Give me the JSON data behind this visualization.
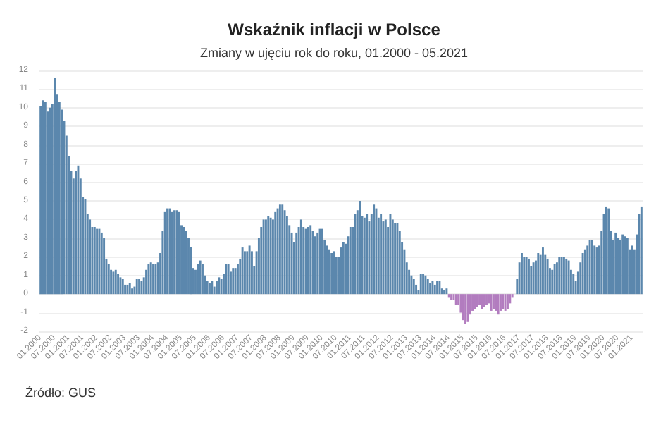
{
  "chart_data": {
    "type": "bar",
    "title": "Wskaźnik inflacji w Polsce",
    "subtitle": "Zmiany w ujęciu rok do roku, 01.2000 - 05.2021",
    "annotations": [
      "Źródło: GUS"
    ],
    "categories": [
      "01.2000",
      null,
      null,
      null,
      null,
      null,
      "07.2000",
      null,
      null,
      null,
      null,
      null,
      "01.2001",
      null,
      null,
      null,
      null,
      null,
      "07.2001",
      null,
      null,
      null,
      null,
      null,
      "01.2002",
      null,
      null,
      null,
      null,
      null,
      "07.2002",
      null,
      null,
      null,
      null,
      null,
      "01.2003",
      null,
      null,
      null,
      null,
      null,
      "07.2003",
      null,
      null,
      null,
      null,
      null,
      "01.2004",
      null,
      null,
      null,
      null,
      null,
      "07.2004",
      null,
      null,
      null,
      null,
      null,
      "01.2005",
      null,
      null,
      null,
      null,
      null,
      "07.2005",
      null,
      null,
      null,
      null,
      null,
      "01.2006",
      null,
      null,
      null,
      null,
      null,
      "07.2006",
      null,
      null,
      null,
      null,
      null,
      "01.2007",
      null,
      null,
      null,
      null,
      null,
      "07.2007",
      null,
      null,
      null,
      null,
      null,
      "01.2008",
      null,
      null,
      null,
      null,
      null,
      "07.2008",
      null,
      null,
      null,
      null,
      null,
      "01.2009",
      null,
      null,
      null,
      null,
      null,
      "07.2009",
      null,
      null,
      null,
      null,
      null,
      "01.2010",
      null,
      null,
      null,
      null,
      null,
      "07.2010",
      null,
      null,
      null,
      null,
      null,
      "01.2011",
      null,
      null,
      null,
      null,
      null,
      "07.2011",
      null,
      null,
      null,
      null,
      null,
      "01.2012",
      null,
      null,
      null,
      null,
      null,
      "07.2012",
      null,
      null,
      null,
      null,
      null,
      "01.2013",
      null,
      null,
      null,
      null,
      null,
      "07.2013",
      null,
      null,
      null,
      null,
      null,
      "01.2014",
      null,
      null,
      null,
      null,
      null,
      "07.2014",
      null,
      null,
      null,
      null,
      null,
      "01.2015",
      null,
      null,
      null,
      null,
      null,
      "07.2015",
      null,
      null,
      null,
      null,
      null,
      "01.2016",
      null,
      null,
      null,
      null,
      null,
      "07.2016",
      null,
      null,
      null,
      null,
      null,
      "01.2017",
      null,
      null,
      null,
      null,
      null,
      "07.2017",
      null,
      null,
      null,
      null,
      null,
      "01.2018",
      null,
      null,
      null,
      null,
      null,
      "07.2018",
      null,
      null,
      null,
      null,
      null,
      "01.2019",
      null,
      null,
      null,
      null,
      null,
      "07.2019",
      null,
      null,
      null,
      null,
      null,
      "01.2020",
      null,
      null,
      null,
      null,
      null,
      "07.2020",
      null,
      null,
      null,
      null,
      null,
      "01.2021",
      null,
      null,
      null,
      null
    ],
    "values": [
      10.1,
      10.4,
      10.3,
      9.8,
      10.0,
      10.2,
      11.6,
      10.7,
      10.3,
      9.9,
      9.3,
      8.5,
      7.4,
      6.6,
      6.2,
      6.6,
      6.9,
      6.2,
      5.2,
      5.1,
      4.3,
      4.0,
      3.6,
      3.6,
      3.5,
      3.5,
      3.3,
      3.0,
      1.9,
      1.6,
      1.3,
      1.2,
      1.3,
      1.1,
      0.9,
      0.8,
      0.5,
      0.5,
      0.6,
      0.3,
      0.4,
      0.8,
      0.8,
      0.7,
      0.9,
      1.3,
      1.6,
      1.7,
      1.6,
      1.6,
      1.7,
      2.2,
      3.4,
      4.4,
      4.6,
      4.6,
      4.4,
      4.5,
      4.5,
      4.4,
      3.7,
      3.6,
      3.4,
      3.0,
      2.5,
      1.4,
      1.3,
      1.6,
      1.8,
      1.6,
      1.0,
      0.7,
      0.6,
      0.7,
      0.4,
      0.7,
      0.9,
      0.8,
      1.1,
      1.6,
      1.6,
      1.2,
      1.4,
      1.4,
      1.6,
      1.9,
      2.5,
      2.3,
      2.3,
      2.6,
      2.3,
      1.5,
      2.3,
      3.0,
      3.6,
      4.0,
      4.0,
      4.2,
      4.1,
      4.0,
      4.4,
      4.6,
      4.8,
      4.8,
      4.5,
      4.2,
      3.7,
      3.3,
      2.8,
      3.3,
      3.6,
      4.0,
      3.6,
      3.5,
      3.6,
      3.7,
      3.4,
      3.1,
      3.3,
      3.5,
      3.5,
      2.9,
      2.6,
      2.4,
      2.2,
      2.3,
      2.0,
      2.0,
      2.5,
      2.8,
      2.7,
      3.1,
      3.6,
      3.6,
      4.3,
      4.5,
      5.0,
      4.2,
      4.1,
      4.3,
      3.9,
      4.3,
      4.8,
      4.6,
      4.1,
      4.3,
      3.9,
      4.0,
      3.6,
      4.3,
      4.0,
      3.8,
      3.8,
      3.4,
      2.8,
      2.4,
      1.7,
      1.3,
      1.0,
      0.8,
      0.5,
      0.2,
      1.1,
      1.1,
      1.0,
      0.8,
      0.6,
      0.7,
      0.5,
      0.7,
      0.7,
      0.3,
      0.2,
      0.3,
      -0.2,
      -0.3,
      -0.3,
      -0.6,
      -0.6,
      -1.0,
      -1.4,
      -1.6,
      -1.5,
      -1.1,
      -0.9,
      -0.8,
      -0.7,
      -0.6,
      -0.8,
      -0.7,
      -0.6,
      -0.5,
      -0.9,
      -0.8,
      -0.9,
      -1.1,
      -0.9,
      -0.8,
      -0.9,
      -0.8,
      -0.5,
      -0.2,
      0.0,
      0.8,
      1.7,
      2.2,
      2.0,
      2.0,
      1.9,
      1.5,
      1.7,
      1.8,
      2.2,
      2.1,
      2.5,
      2.1,
      1.9,
      1.4,
      1.3,
      1.6,
      1.7,
      2.0,
      2.0,
      2.0,
      1.9,
      1.8,
      1.3,
      1.1,
      0.7,
      1.2,
      1.7,
      2.2,
      2.4,
      2.6,
      2.9,
      2.9,
      2.6,
      2.5,
      2.6,
      3.4,
      4.3,
      4.7,
      4.6,
      3.4,
      2.9,
      3.3,
      3.0,
      2.9,
      3.2,
      3.1,
      3.0,
      2.4,
      2.6,
      2.4,
      3.2,
      4.3,
      4.7
    ],
    "colors": [
      "#5b87ad",
      "#5b87ad",
      "#5b87ad",
      "#5b87ad",
      "#5b87ad",
      "#5b87ad",
      "#5b87ad",
      "#5b87ad",
      "#5b87ad",
      "#5b87ad",
      "#5b87ad",
      "#5b87ad",
      "#5b87ad",
      "#5b87ad",
      "#5b87ad",
      "#5b87ad",
      "#5b87ad",
      "#5b87ad",
      "#5b87ad",
      "#5b87ad",
      "#5b87ad",
      "#5b87ad",
      "#5b87ad",
      "#5b87ad",
      "#5b87ad",
      "#5b87ad",
      "#5b87ad",
      "#5b87ad",
      "#5b87ad",
      "#5b87ad",
      "#5b87ad",
      "#5b87ad",
      "#5b87ad",
      "#5b87ad",
      "#5b87ad",
      "#5b87ad",
      "#5b87ad",
      "#5b87ad",
      "#5b87ad",
      "#5b87ad",
      "#5b87ad",
      "#5b87ad",
      "#5b87ad",
      "#5b87ad",
      "#5b87ad",
      "#5b87ad",
      "#5b87ad",
      "#5b87ad",
      "#5b87ad",
      "#5b87ad",
      "#5b87ad",
      "#5b87ad",
      "#5b87ad",
      "#5b87ad",
      "#5b87ad",
      "#5b87ad",
      "#5b87ad",
      "#5b87ad",
      "#5b87ad",
      "#5b87ad",
      "#5b87ad",
      "#5b87ad",
      "#5b87ad",
      "#5b87ad",
      "#5b87ad",
      "#5b87ad",
      "#5b87ad",
      "#5b87ad",
      "#5b87ad",
      "#5b87ad",
      "#5b87ad",
      "#5b87ad",
      "#5b87ad",
      "#5b87ad",
      "#5b87ad",
      "#5b87ad",
      "#5b87ad",
      "#5b87ad",
      "#5b87ad",
      "#5b87ad",
      "#5b87ad",
      "#5b87ad",
      "#5b87ad",
      "#5b87ad",
      "#5b87ad",
      "#5b87ad",
      "#5b87ad",
      "#5b87ad",
      "#5b87ad",
      "#5b87ad",
      "#5b87ad",
      "#5b87ad",
      "#5b87ad",
      "#5b87ad",
      "#5b87ad",
      "#5b87ad",
      "#5b87ad",
      "#5b87ad",
      "#5b87ad",
      "#5b87ad",
      "#5b87ad",
      "#5b87ad",
      "#5b87ad",
      "#5b87ad",
      "#5b87ad",
      "#5b87ad",
      "#5b87ad",
      "#5b87ad",
      "#5b87ad",
      "#5b87ad",
      "#5b87ad",
      "#5b87ad",
      "#5b87ad",
      "#5b87ad",
      "#5b87ad",
      "#5b87ad",
      "#5b87ad",
      "#5b87ad",
      "#5b87ad",
      "#5b87ad",
      "#5b87ad",
      "#5b87ad",
      "#5b87ad",
      "#5b87ad",
      "#5b87ad",
      "#5b87ad",
      "#5b87ad",
      "#5b87ad",
      "#5b87ad",
      "#5b87ad",
      "#5b87ad",
      "#5b87ad",
      "#5b87ad",
      "#5b87ad",
      "#5b87ad",
      "#5b87ad",
      "#5b87ad",
      "#5b87ad",
      "#5b87ad",
      "#5b87ad",
      "#5b87ad",
      "#5b87ad",
      "#5b87ad",
      "#5b87ad",
      "#5b87ad",
      "#5b87ad",
      "#5b87ad",
      "#5b87ad",
      "#5b87ad",
      "#5b87ad",
      "#5b87ad",
      "#5b87ad",
      "#5b87ad",
      "#5b87ad",
      "#5b87ad",
      "#5b87ad",
      "#5b87ad",
      "#5b87ad",
      "#5b87ad",
      "#5b87ad",
      "#5b87ad",
      "#5b87ad",
      "#5b87ad",
      "#5b87ad",
      "#5b87ad",
      "#5b87ad",
      "#5b87ad",
      "#5b87ad",
      "#5b87ad",
      "#5b87ad",
      "#5b87ad",
      "#5b87ad",
      "#5b87ad",
      "#5b87ad",
      "#b27cbf",
      "#b27cbf",
      "#b27cbf",
      "#b27cbf",
      "#b27cbf",
      "#b27cbf",
      "#b27cbf",
      "#b27cbf",
      "#b27cbf",
      "#b27cbf",
      "#b27cbf",
      "#b27cbf",
      "#b27cbf",
      "#b27cbf",
      "#b27cbf",
      "#b27cbf",
      "#b27cbf",
      "#b27cbf",
      "#b27cbf",
      "#b27cbf",
      "#b27cbf",
      "#b27cbf",
      "#b27cbf",
      "#b27cbf",
      "#b27cbf",
      "#b27cbf",
      "#b27cbf",
      "#b27cbf",
      "#b27cbf",
      "#5b87ad",
      "#5b87ad",
      "#5b87ad",
      "#5b87ad",
      "#5b87ad",
      "#5b87ad",
      "#5b87ad",
      "#5b87ad",
      "#5b87ad",
      "#5b87ad",
      "#5b87ad",
      "#5b87ad",
      "#5b87ad",
      "#5b87ad",
      "#5b87ad",
      "#5b87ad",
      "#5b87ad",
      "#5b87ad",
      "#5b87ad",
      "#5b87ad",
      "#5b87ad",
      "#5b87ad",
      "#5b87ad",
      "#5b87ad",
      "#5b87ad",
      "#5b87ad",
      "#5b87ad",
      "#5b87ad",
      "#5b87ad",
      "#5b87ad",
      "#5b87ad",
      "#5b87ad",
      "#5b87ad",
      "#5b87ad",
      "#5b87ad",
      "#5b87ad",
      "#5b87ad",
      "#5b87ad",
      "#5b87ad",
      "#5b87ad",
      "#5b87ad",
      "#5b87ad",
      "#5b87ad",
      "#5b87ad",
      "#5b87ad",
      "#5b87ad",
      "#5b87ad",
      "#5b87ad",
      "#5b87ad",
      "#5b87ad",
      "#5b87ad",
      "#5b87ad",
      "#5b87ad",
      "#5b87ad"
    ],
    "ylim": [
      -2,
      12
    ],
    "yticks": [
      -2,
      -1,
      0,
      1,
      2,
      3,
      4,
      5,
      6,
      7,
      8,
      9,
      10,
      11,
      12
    ],
    "grid": "y"
  }
}
